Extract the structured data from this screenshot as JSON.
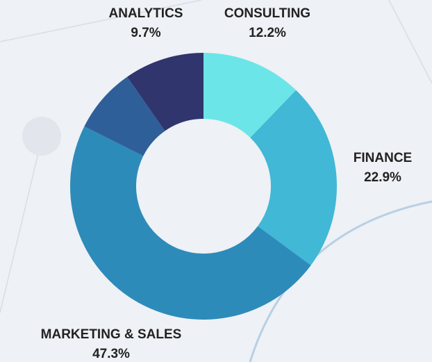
{
  "chart_data": {
    "type": "donut",
    "categories": [
      "CONSULTING",
      "FINANCE",
      "MARKETING & SALES",
      null,
      "ANALYTICS"
    ],
    "values": [
      12.2,
      22.9,
      47.3,
      7.9,
      9.7
    ],
    "value_labels": [
      "12.2%",
      "22.9%",
      "47.3%",
      null,
      "9.7%"
    ],
    "colors": [
      "#6ce5e8",
      "#41b8d5",
      "#2d8bba",
      "#2f5f98",
      "#31356e"
    ]
  }
}
